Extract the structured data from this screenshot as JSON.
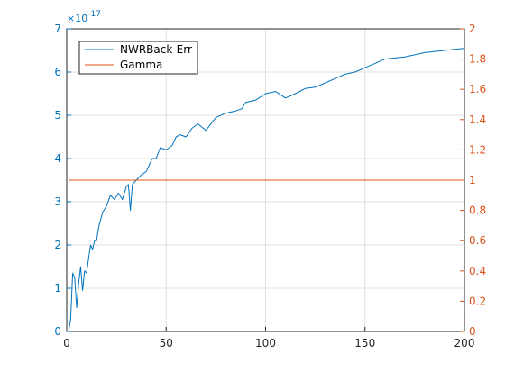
{
  "chart_data": {
    "type": "line",
    "x": [
      1,
      2,
      3,
      4,
      5,
      6,
      7,
      8,
      9,
      10,
      11,
      12,
      13,
      14,
      15,
      16,
      18,
      20,
      22,
      24,
      26,
      28,
      30,
      31,
      32,
      33,
      35,
      37,
      40,
      43,
      45,
      47,
      50,
      53,
      55,
      57,
      60,
      63,
      66,
      70,
      75,
      80,
      85,
      88,
      90,
      95,
      100,
      105,
      110,
      115,
      120,
      125,
      130,
      135,
      140,
      145,
      150,
      155,
      160,
      170,
      180,
      190,
      200
    ],
    "series": [
      {
        "name": "NWRBack-Err",
        "axis": "left",
        "color": "#0072bd",
        "values": [
          0,
          0.3,
          1.35,
          1.25,
          0.55,
          1.1,
          1.5,
          0.95,
          1.4,
          1.35,
          1.7,
          2.0,
          1.9,
          2.1,
          2.1,
          2.4,
          2.75,
          2.9,
          3.15,
          3.05,
          3.2,
          3.05,
          3.35,
          3.4,
          2.8,
          3.4,
          3.5,
          3.6,
          3.7,
          4.0,
          4.0,
          4.25,
          4.2,
          4.3,
          4.5,
          4.55,
          4.5,
          4.7,
          4.8,
          4.65,
          4.95,
          5.05,
          5.1,
          5.15,
          5.3,
          5.35,
          5.5,
          5.55,
          5.4,
          5.5,
          5.62,
          5.65,
          5.75,
          5.85,
          5.95,
          6.0,
          6.1,
          6.2,
          6.3,
          6.35,
          6.45,
          6.5,
          6.55
        ]
      },
      {
        "name": "Gamma",
        "axis": "right",
        "color": "#d95319",
        "values": [
          1,
          1,
          1,
          1,
          1,
          1,
          1,
          1,
          1,
          1,
          1,
          1,
          1,
          1,
          1,
          1,
          1,
          1,
          1,
          1,
          1,
          1,
          1,
          1,
          1,
          1,
          1,
          1,
          1,
          1,
          1,
          1,
          1,
          1,
          1,
          1,
          1,
          1,
          1,
          1,
          1,
          1,
          1,
          1,
          1,
          1,
          1,
          1,
          1,
          1,
          1,
          1,
          1,
          1,
          1,
          1,
          1,
          1,
          1,
          1,
          1,
          1,
          1
        ]
      }
    ],
    "xlim": [
      0,
      200
    ],
    "ylim_left": [
      0,
      7
    ],
    "ylim_right": [
      0,
      2
    ],
    "x_ticks": [
      0,
      50,
      100,
      150,
      200
    ],
    "y_ticks_left": [
      0,
      1,
      2,
      3,
      4,
      5,
      6,
      7
    ],
    "y_ticks_right": [
      0,
      0.2,
      0.4,
      0.6,
      0.8,
      1,
      1.2,
      1.4,
      1.6,
      1.8,
      2
    ],
    "y_left_exponent_label": "×10",
    "y_left_exponent_power": "-17",
    "grid": true,
    "legend_position": "top-left",
    "left_axis_color": "#0072bd",
    "right_axis_color": "#d95319"
  }
}
